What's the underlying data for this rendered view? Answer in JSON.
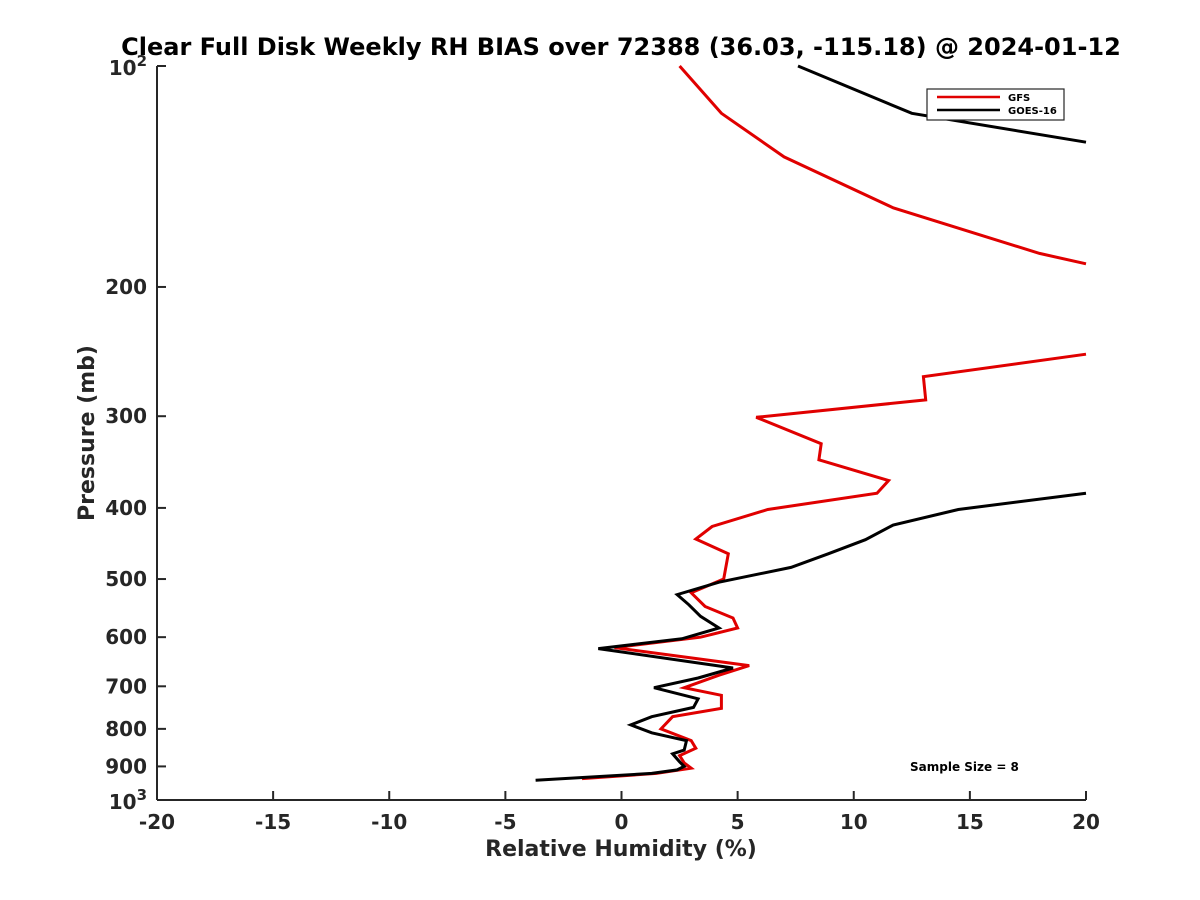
{
  "chart_data": {
    "type": "line",
    "title": "Clear Full Disk Weekly RH BIAS over 72388 (36.03, -115.18) @ 2024-01-12",
    "xlabel": "Relative Humidity (%)",
    "ylabel": "Pressure (mb)",
    "xlim": [
      -20,
      20
    ],
    "ylim": [
      1000,
      100
    ],
    "y_scale": "log",
    "y_reversed": true,
    "grid": false,
    "legend_position": "top-right",
    "x_ticks": [
      "-20",
      "-15",
      "-10",
      "-5",
      "0",
      "5",
      "10",
      "15",
      "20"
    ],
    "y_ticks": [
      {
        "value": 100,
        "base": "10",
        "exp": "2"
      },
      {
        "value": 200,
        "label": "200"
      },
      {
        "value": 300,
        "label": "300"
      },
      {
        "value": 400,
        "label": "400"
      },
      {
        "value": 500,
        "label": "500"
      },
      {
        "value": 600,
        "label": "600"
      },
      {
        "value": 700,
        "label": "700"
      },
      {
        "value": 800,
        "label": "800"
      },
      {
        "value": 900,
        "label": "900"
      },
      {
        "value": 1000,
        "base": "10",
        "exp": "3"
      }
    ],
    "annotation": "Sample Size = 8",
    "series": [
      {
        "name": "GFS",
        "color": "#e00000",
        "segments": [
          [
            {
              "x": 2.5,
              "y": 100
            },
            {
              "x": 4.3,
              "y": 116
            },
            {
              "x": 7.0,
              "y": 133
            },
            {
              "x": 11.7,
              "y": 156
            },
            {
              "x": 18.0,
              "y": 180
            },
            {
              "x": 20.0,
              "y": 186
            }
          ],
          [
            {
              "x": 20.0,
              "y": 247
            },
            {
              "x": 13.0,
              "y": 265
            },
            {
              "x": 13.1,
              "y": 285
            },
            {
              "x": 5.8,
              "y": 301
            },
            {
              "x": 8.6,
              "y": 327
            },
            {
              "x": 8.5,
              "y": 344
            },
            {
              "x": 11.5,
              "y": 367
            },
            {
              "x": 11.0,
              "y": 382
            },
            {
              "x": 6.3,
              "y": 402
            },
            {
              "x": 3.9,
              "y": 424
            },
            {
              "x": 3.2,
              "y": 441
            },
            {
              "x": 4.6,
              "y": 462
            },
            {
              "x": 4.4,
              "y": 500
            },
            {
              "x": 3.0,
              "y": 522
            },
            {
              "x": 3.6,
              "y": 545
            },
            {
              "x": 4.8,
              "y": 565
            },
            {
              "x": 5.0,
              "y": 583
            },
            {
              "x": 3.4,
              "y": 600
            },
            {
              "x": -0.3,
              "y": 620
            },
            {
              "x": 5.5,
              "y": 656
            },
            {
              "x": 4.2,
              "y": 676
            },
            {
              "x": 2.7,
              "y": 703
            },
            {
              "x": 4.3,
              "y": 720
            },
            {
              "x": 4.3,
              "y": 750
            },
            {
              "x": 2.2,
              "y": 770
            },
            {
              "x": 1.7,
              "y": 800
            },
            {
              "x": 3.0,
              "y": 830
            },
            {
              "x": 3.2,
              "y": 850
            },
            {
              "x": 2.5,
              "y": 870
            },
            {
              "x": 2.7,
              "y": 890
            },
            {
              "x": 3.0,
              "y": 905
            },
            {
              "x": 1.5,
              "y": 920
            },
            {
              "x": -1.7,
              "y": 935
            }
          ]
        ]
      },
      {
        "name": "GOES-16",
        "color": "#000000",
        "segments": [
          [
            {
              "x": 7.6,
              "y": 100
            },
            {
              "x": 12.5,
              "y": 116
            },
            {
              "x": 20.0,
              "y": 127
            }
          ],
          [
            {
              "x": 20.0,
              "y": 382
            },
            {
              "x": 14.5,
              "y": 402
            },
            {
              "x": 11.7,
              "y": 422
            },
            {
              "x": 10.5,
              "y": 442
            },
            {
              "x": 8.9,
              "y": 462
            },
            {
              "x": 7.3,
              "y": 482
            },
            {
              "x": 4.2,
              "y": 505
            },
            {
              "x": 2.4,
              "y": 525
            },
            {
              "x": 2.9,
              "y": 542
            },
            {
              "x": 3.4,
              "y": 562
            },
            {
              "x": 4.2,
              "y": 583
            },
            {
              "x": 2.6,
              "y": 603
            },
            {
              "x": -1.0,
              "y": 622
            },
            {
              "x": 4.8,
              "y": 661
            },
            {
              "x": 3.3,
              "y": 682
            },
            {
              "x": 1.4,
              "y": 703
            },
            {
              "x": 3.3,
              "y": 728
            },
            {
              "x": 3.1,
              "y": 748
            },
            {
              "x": 1.3,
              "y": 770
            },
            {
              "x": 0.4,
              "y": 790
            },
            {
              "x": 1.3,
              "y": 810
            },
            {
              "x": 2.8,
              "y": 830
            },
            {
              "x": 2.7,
              "y": 855
            },
            {
              "x": 2.2,
              "y": 865
            },
            {
              "x": 2.5,
              "y": 887
            },
            {
              "x": 2.7,
              "y": 900
            },
            {
              "x": 2.4,
              "y": 910
            },
            {
              "x": 1.3,
              "y": 920
            },
            {
              "x": -3.7,
              "y": 940
            }
          ]
        ]
      }
    ]
  }
}
